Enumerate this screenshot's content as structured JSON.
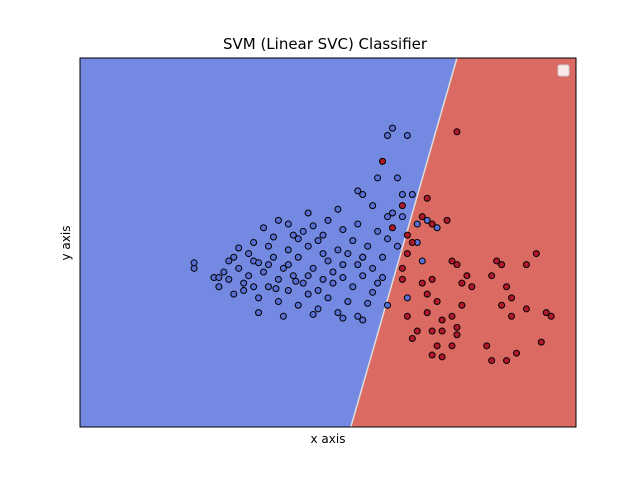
{
  "chart_data": {
    "type": "scatter",
    "title": "SVM (Linear SVC) Classifier",
    "xlabel": "x axis",
    "ylabel": "y axis",
    "xlim": [
      0,
      10
    ],
    "ylim": [
      0,
      10
    ],
    "x_ticks_visible": false,
    "y_ticks_visible": false,
    "grid": false,
    "legend": {
      "placement": "top-right",
      "entries": []
    },
    "decision_regions": {
      "boundary": [
        [
          5.46,
          0.0
        ],
        [
          7.6,
          10.0
        ]
      ],
      "left_color": "#7489e2",
      "right_color": "#db6a63",
      "edge_color": "#dcdcdc"
    },
    "series": [
      {
        "class_color": "#5a6fd6",
        "edge_color": "#000000",
        "points": [
          [
            2.3,
            4.3
          ],
          [
            2.3,
            4.45
          ],
          [
            2.7,
            4.05
          ],
          [
            2.8,
            4.05
          ],
          [
            2.9,
            4.2
          ],
          [
            3.0,
            4.5
          ],
          [
            3.2,
            4.85
          ],
          [
            3.4,
            4.7
          ],
          [
            3.5,
            5.0
          ],
          [
            3.7,
            5.4
          ],
          [
            3.9,
            5.15
          ],
          [
            4.0,
            5.6
          ],
          [
            4.2,
            5.5
          ],
          [
            4.3,
            5.2
          ],
          [
            4.5,
            5.3
          ],
          [
            4.6,
            5.8
          ],
          [
            4.7,
            5.45
          ],
          [
            4.8,
            5.05
          ],
          [
            5.0,
            5.6
          ],
          [
            5.2,
            5.9
          ],
          [
            5.3,
            5.35
          ],
          [
            5.5,
            5.05
          ],
          [
            5.6,
            5.5
          ],
          [
            5.7,
            4.6
          ],
          [
            3.1,
            3.6
          ],
          [
            3.3,
            3.9
          ],
          [
            3.6,
            3.5
          ],
          [
            3.8,
            3.8
          ],
          [
            4.0,
            3.4
          ],
          [
            4.2,
            3.7
          ],
          [
            4.4,
            3.3
          ],
          [
            4.6,
            3.6
          ],
          [
            4.8,
            3.2
          ],
          [
            5.0,
            3.5
          ],
          [
            5.2,
            3.1
          ],
          [
            5.4,
            3.4
          ],
          [
            5.6,
            3.0
          ],
          [
            5.8,
            3.35
          ],
          [
            5.3,
            2.95
          ],
          [
            3.6,
            3.1
          ],
          [
            4.1,
            3.0
          ],
          [
            4.7,
            3.05
          ],
          [
            3.0,
            4.0
          ],
          [
            3.2,
            4.3
          ],
          [
            3.4,
            4.1
          ],
          [
            3.5,
            4.5
          ],
          [
            3.7,
            4.2
          ],
          [
            3.9,
            4.6
          ],
          [
            4.0,
            4.0
          ],
          [
            4.1,
            4.3
          ],
          [
            4.3,
            4.1
          ],
          [
            4.4,
            4.6
          ],
          [
            4.5,
            3.9
          ],
          [
            4.7,
            4.3
          ],
          [
            4.9,
            4.0
          ],
          [
            5.0,
            4.5
          ],
          [
            5.1,
            4.2
          ],
          [
            5.3,
            4.4
          ],
          [
            5.5,
            3.8
          ],
          [
            5.7,
            4.1
          ],
          [
            5.9,
            4.3
          ],
          [
            6.0,
            3.9
          ],
          [
            6.1,
            4.6
          ],
          [
            6.2,
            5.1
          ],
          [
            3.3,
            3.7
          ],
          [
            3.8,
            4.4
          ],
          [
            4.2,
            4.8
          ],
          [
            4.6,
            4.9
          ],
          [
            4.9,
            5.2
          ],
          [
            5.2,
            4.8
          ],
          [
            5.4,
            4.7
          ],
          [
            5.8,
            4.9
          ],
          [
            2.8,
            3.8
          ],
          [
            3.1,
            4.6
          ],
          [
            3.5,
            3.8
          ],
          [
            4.8,
            3.7
          ],
          [
            5.1,
            3.9
          ],
          [
            5.6,
            4.4
          ],
          [
            6.0,
            5.3
          ],
          [
            6.3,
            5.8
          ],
          [
            6.4,
            4.9
          ],
          [
            6.5,
            5.7
          ],
          [
            6.6,
            3.5
          ],
          [
            6.8,
            5.0
          ],
          [
            6.9,
            4.5
          ],
          [
            7.0,
            5.6
          ],
          [
            7.2,
            5.4
          ],
          [
            5.6,
            6.4
          ],
          [
            5.7,
            6.3
          ],
          [
            5.9,
            6.0
          ],
          [
            6.0,
            6.75
          ],
          [
            6.1,
            7.2
          ],
          [
            6.2,
            7.9
          ],
          [
            6.3,
            8.1
          ],
          [
            6.4,
            6.75
          ],
          [
            6.5,
            6.3
          ],
          [
            6.6,
            7.9
          ],
          [
            6.7,
            6.3
          ],
          [
            6.8,
            5.5
          ],
          [
            6.2,
            5.7
          ],
          [
            6.1,
            4.05
          ],
          [
            5.9,
            3.65
          ],
          [
            6.2,
            3.3
          ],
          [
            5.7,
            2.9
          ],
          [
            3.8,
            4.9
          ],
          [
            4.4,
            5.1
          ],
          [
            3.6,
            4.45
          ],
          [
            4.2,
            4.4
          ],
          [
            4.6,
            4.1
          ],
          [
            5.3,
            4.05
          ],
          [
            5.7,
            4.6
          ],
          [
            4.9,
            4.7
          ],
          [
            3.95,
            3.75
          ],
          [
            4.35,
            3.95
          ]
        ]
      },
      {
        "class_color": "#b2182b",
        "edge_color": "#000000",
        "points": [
          [
            7.6,
            8.0
          ],
          [
            6.1,
            7.2
          ],
          [
            6.5,
            6.0
          ],
          [
            7.0,
            6.2
          ],
          [
            6.9,
            5.7
          ],
          [
            7.4,
            5.6
          ],
          [
            7.1,
            5.5
          ],
          [
            7.5,
            4.5
          ],
          [
            7.6,
            4.4
          ],
          [
            7.8,
            4.1
          ],
          [
            7.7,
            3.9
          ],
          [
            7.9,
            3.8
          ],
          [
            8.3,
            4.1
          ],
          [
            8.4,
            4.5
          ],
          [
            8.5,
            4.4
          ],
          [
            9.0,
            4.4
          ],
          [
            9.2,
            4.7
          ],
          [
            8.6,
            3.8
          ],
          [
            8.7,
            3.5
          ],
          [
            8.5,
            3.3
          ],
          [
            8.7,
            3.0
          ],
          [
            9.0,
            3.2
          ],
          [
            9.4,
            3.1
          ],
          [
            9.5,
            3.0
          ],
          [
            9.3,
            2.3
          ],
          [
            8.2,
            2.2
          ],
          [
            8.3,
            1.8
          ],
          [
            8.6,
            1.8
          ],
          [
            8.8,
            2.0
          ],
          [
            7.5,
            3.0
          ],
          [
            7.7,
            3.3
          ],
          [
            7.6,
            2.7
          ],
          [
            7.3,
            2.9
          ],
          [
            7.0,
            3.1
          ],
          [
            7.0,
            3.6
          ],
          [
            7.2,
            3.4
          ],
          [
            6.9,
            3.9
          ],
          [
            7.1,
            4.0
          ],
          [
            7.1,
            2.6
          ],
          [
            7.2,
            2.2
          ],
          [
            7.3,
            2.6
          ],
          [
            7.3,
            1.9
          ],
          [
            7.1,
            1.95
          ],
          [
            6.6,
            3.0
          ],
          [
            6.7,
            2.4
          ],
          [
            6.8,
            2.6
          ],
          [
            7.6,
            2.5
          ],
          [
            6.5,
            4.3
          ],
          [
            6.6,
            4.7
          ],
          [
            6.7,
            5.0
          ],
          [
            6.6,
            5.2
          ],
          [
            6.3,
            5.4
          ],
          [
            6.5,
            4.0
          ],
          [
            7.5,
            2.2
          ]
        ]
      }
    ]
  }
}
